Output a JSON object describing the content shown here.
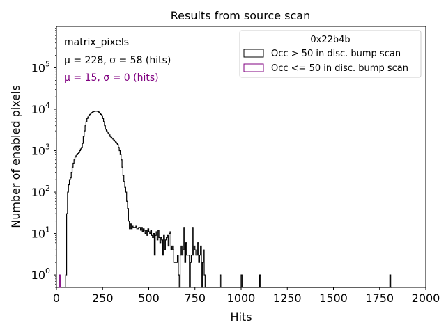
{
  "chart_data": {
    "type": "histogram",
    "title": "Results from source scan",
    "xlabel": "Hits",
    "ylabel": "Number of enabled pixels",
    "xlim": [
      0,
      2000
    ],
    "ylim": [
      0.5,
      1000000
    ],
    "yscale": "log",
    "xticks": [
      "0",
      "250",
      "500",
      "750",
      "1000",
      "1250",
      "1500",
      "1750",
      "2000"
    ],
    "yticks": [
      {
        "value": 1,
        "base": "10",
        "exp": "0"
      },
      {
        "value": 10,
        "base": "10",
        "exp": "1"
      },
      {
        "value": 100,
        "base": "10",
        "exp": "2"
      },
      {
        "value": 1000,
        "base": "10",
        "exp": "3"
      },
      {
        "value": 10000,
        "base": "10",
        "exp": "4"
      },
      {
        "value": 100000,
        "base": "10",
        "exp": "5"
      }
    ],
    "annotations": {
      "name": "matrix_pixels",
      "stats_black": "μ = 228, σ = 58 (hits)",
      "stats_purple": "μ = 15, σ = 0 (hits)"
    },
    "legend": {
      "title": "0x22b4b",
      "location": "top-right",
      "entries": [
        "Occ > 50 in disc. bump scan",
        "Occ <= 50 in disc. bump scan"
      ]
    },
    "colors": {
      "series_main": "#000000",
      "series_low": "#800080"
    },
    "bin_width": 5,
    "series": [
      {
        "name": "Occ > 50 in disc. bump scan",
        "color": "#000000",
        "points": [
          [
            50,
            1
          ],
          [
            55,
            30
          ],
          [
            60,
            100
          ],
          [
            65,
            150
          ],
          [
            70,
            200
          ],
          [
            75,
            220
          ],
          [
            80,
            300
          ],
          [
            85,
            400
          ],
          [
            90,
            500
          ],
          [
            95,
            600
          ],
          [
            100,
            700
          ],
          [
            105,
            750
          ],
          [
            110,
            800
          ],
          [
            115,
            850
          ],
          [
            120,
            900
          ],
          [
            125,
            1000
          ],
          [
            130,
            1100
          ],
          [
            135,
            1200
          ],
          [
            140,
            1500
          ],
          [
            145,
            2200
          ],
          [
            150,
            3000
          ],
          [
            155,
            4000
          ],
          [
            160,
            5000
          ],
          [
            165,
            6000
          ],
          [
            170,
            6500
          ],
          [
            175,
            7000
          ],
          [
            180,
            7500
          ],
          [
            185,
            8000
          ],
          [
            190,
            8300
          ],
          [
            195,
            8600
          ],
          [
            200,
            8800
          ],
          [
            205,
            8900
          ],
          [
            210,
            9000
          ],
          [
            215,
            9000
          ],
          [
            220,
            8900
          ],
          [
            225,
            8700
          ],
          [
            230,
            8400
          ],
          [
            235,
            8000
          ],
          [
            240,
            7500
          ],
          [
            245,
            7000
          ],
          [
            250,
            6000
          ],
          [
            255,
            5000
          ],
          [
            260,
            4000
          ],
          [
            265,
            3300
          ],
          [
            270,
            3000
          ],
          [
            275,
            2800
          ],
          [
            280,
            2600
          ],
          [
            285,
            2400
          ],
          [
            290,
            2200
          ],
          [
            295,
            2100
          ],
          [
            300,
            2000
          ],
          [
            305,
            1900
          ],
          [
            310,
            1800
          ],
          [
            315,
            1700
          ],
          [
            320,
            1600
          ],
          [
            325,
            1500
          ],
          [
            330,
            1400
          ],
          [
            335,
            1200
          ],
          [
            340,
            1000
          ],
          [
            345,
            800
          ],
          [
            350,
            600
          ],
          [
            355,
            400
          ],
          [
            360,
            250
          ],
          [
            365,
            180
          ],
          [
            370,
            130
          ],
          [
            375,
            100
          ],
          [
            380,
            60
          ],
          [
            385,
            40
          ],
          [
            390,
            20
          ],
          [
            395,
            13
          ],
          [
            400,
            17
          ],
          [
            405,
            13
          ],
          [
            410,
            15
          ],
          [
            415,
            14
          ],
          [
            420,
            14
          ],
          [
            425,
            14
          ],
          [
            430,
            15
          ],
          [
            435,
            13
          ],
          [
            440,
            13
          ],
          [
            445,
            14
          ],
          [
            450,
            14
          ],
          [
            455,
            12
          ],
          [
            460,
            14
          ],
          [
            465,
            11
          ],
          [
            470,
            13
          ],
          [
            475,
            12
          ],
          [
            480,
            10
          ],
          [
            485,
            12
          ],
          [
            490,
            9
          ],
          [
            495,
            13
          ],
          [
            500,
            11
          ],
          [
            505,
            10
          ],
          [
            510,
            12
          ],
          [
            515,
            9
          ],
          [
            520,
            8
          ],
          [
            525,
            10
          ],
          [
            530,
            3
          ],
          [
            535,
            9
          ],
          [
            540,
            11
          ],
          [
            545,
            7
          ],
          [
            550,
            12
          ],
          [
            555,
            8
          ],
          [
            560,
            6
          ],
          [
            565,
            8
          ],
          [
            570,
            7
          ],
          [
            575,
            3
          ],
          [
            580,
            9
          ],
          [
            585,
            4
          ],
          [
            590,
            7
          ],
          [
            595,
            8
          ],
          [
            600,
            9
          ],
          [
            605,
            5
          ],
          [
            610,
            10
          ],
          [
            615,
            11
          ],
          [
            620,
            4
          ],
          [
            625,
            5
          ],
          [
            630,
            4
          ],
          [
            635,
            2
          ],
          [
            640,
            2
          ],
          [
            645,
            2
          ],
          [
            650,
            2
          ],
          [
            655,
            3
          ],
          [
            660,
            1
          ],
          [
            665,
            0
          ],
          [
            670,
            3
          ],
          [
            675,
            5
          ],
          [
            680,
            3
          ],
          [
            685,
            4
          ],
          [
            690,
            14
          ],
          [
            695,
            2
          ],
          [
            700,
            6
          ],
          [
            705,
            3
          ],
          [
            710,
            3
          ],
          [
            715,
            3
          ],
          [
            720,
            0
          ],
          [
            725,
            2
          ],
          [
            730,
            3
          ],
          [
            735,
            14
          ],
          [
            740,
            3
          ],
          [
            745,
            5
          ],
          [
            750,
            4
          ],
          [
            755,
            3
          ],
          [
            760,
            3
          ],
          [
            765,
            6
          ],
          [
            770,
            2
          ],
          [
            775,
            3
          ],
          [
            780,
            5
          ],
          [
            785,
            0
          ],
          [
            790,
            2
          ],
          [
            795,
            4
          ],
          [
            800,
            1
          ],
          [
            805,
            0
          ],
          [
            885,
            1
          ],
          [
            890,
            0
          ],
          [
            1000,
            1
          ],
          [
            1005,
            0
          ],
          [
            1100,
            1
          ],
          [
            1105,
            0
          ],
          [
            1805,
            1
          ],
          [
            1810,
            0
          ]
        ]
      },
      {
        "name": "Occ <= 50 in disc. bump scan",
        "color": "#800080",
        "points": [
          [
            10,
            0
          ],
          [
            15,
            1
          ],
          [
            20,
            0
          ]
        ]
      }
    ]
  }
}
